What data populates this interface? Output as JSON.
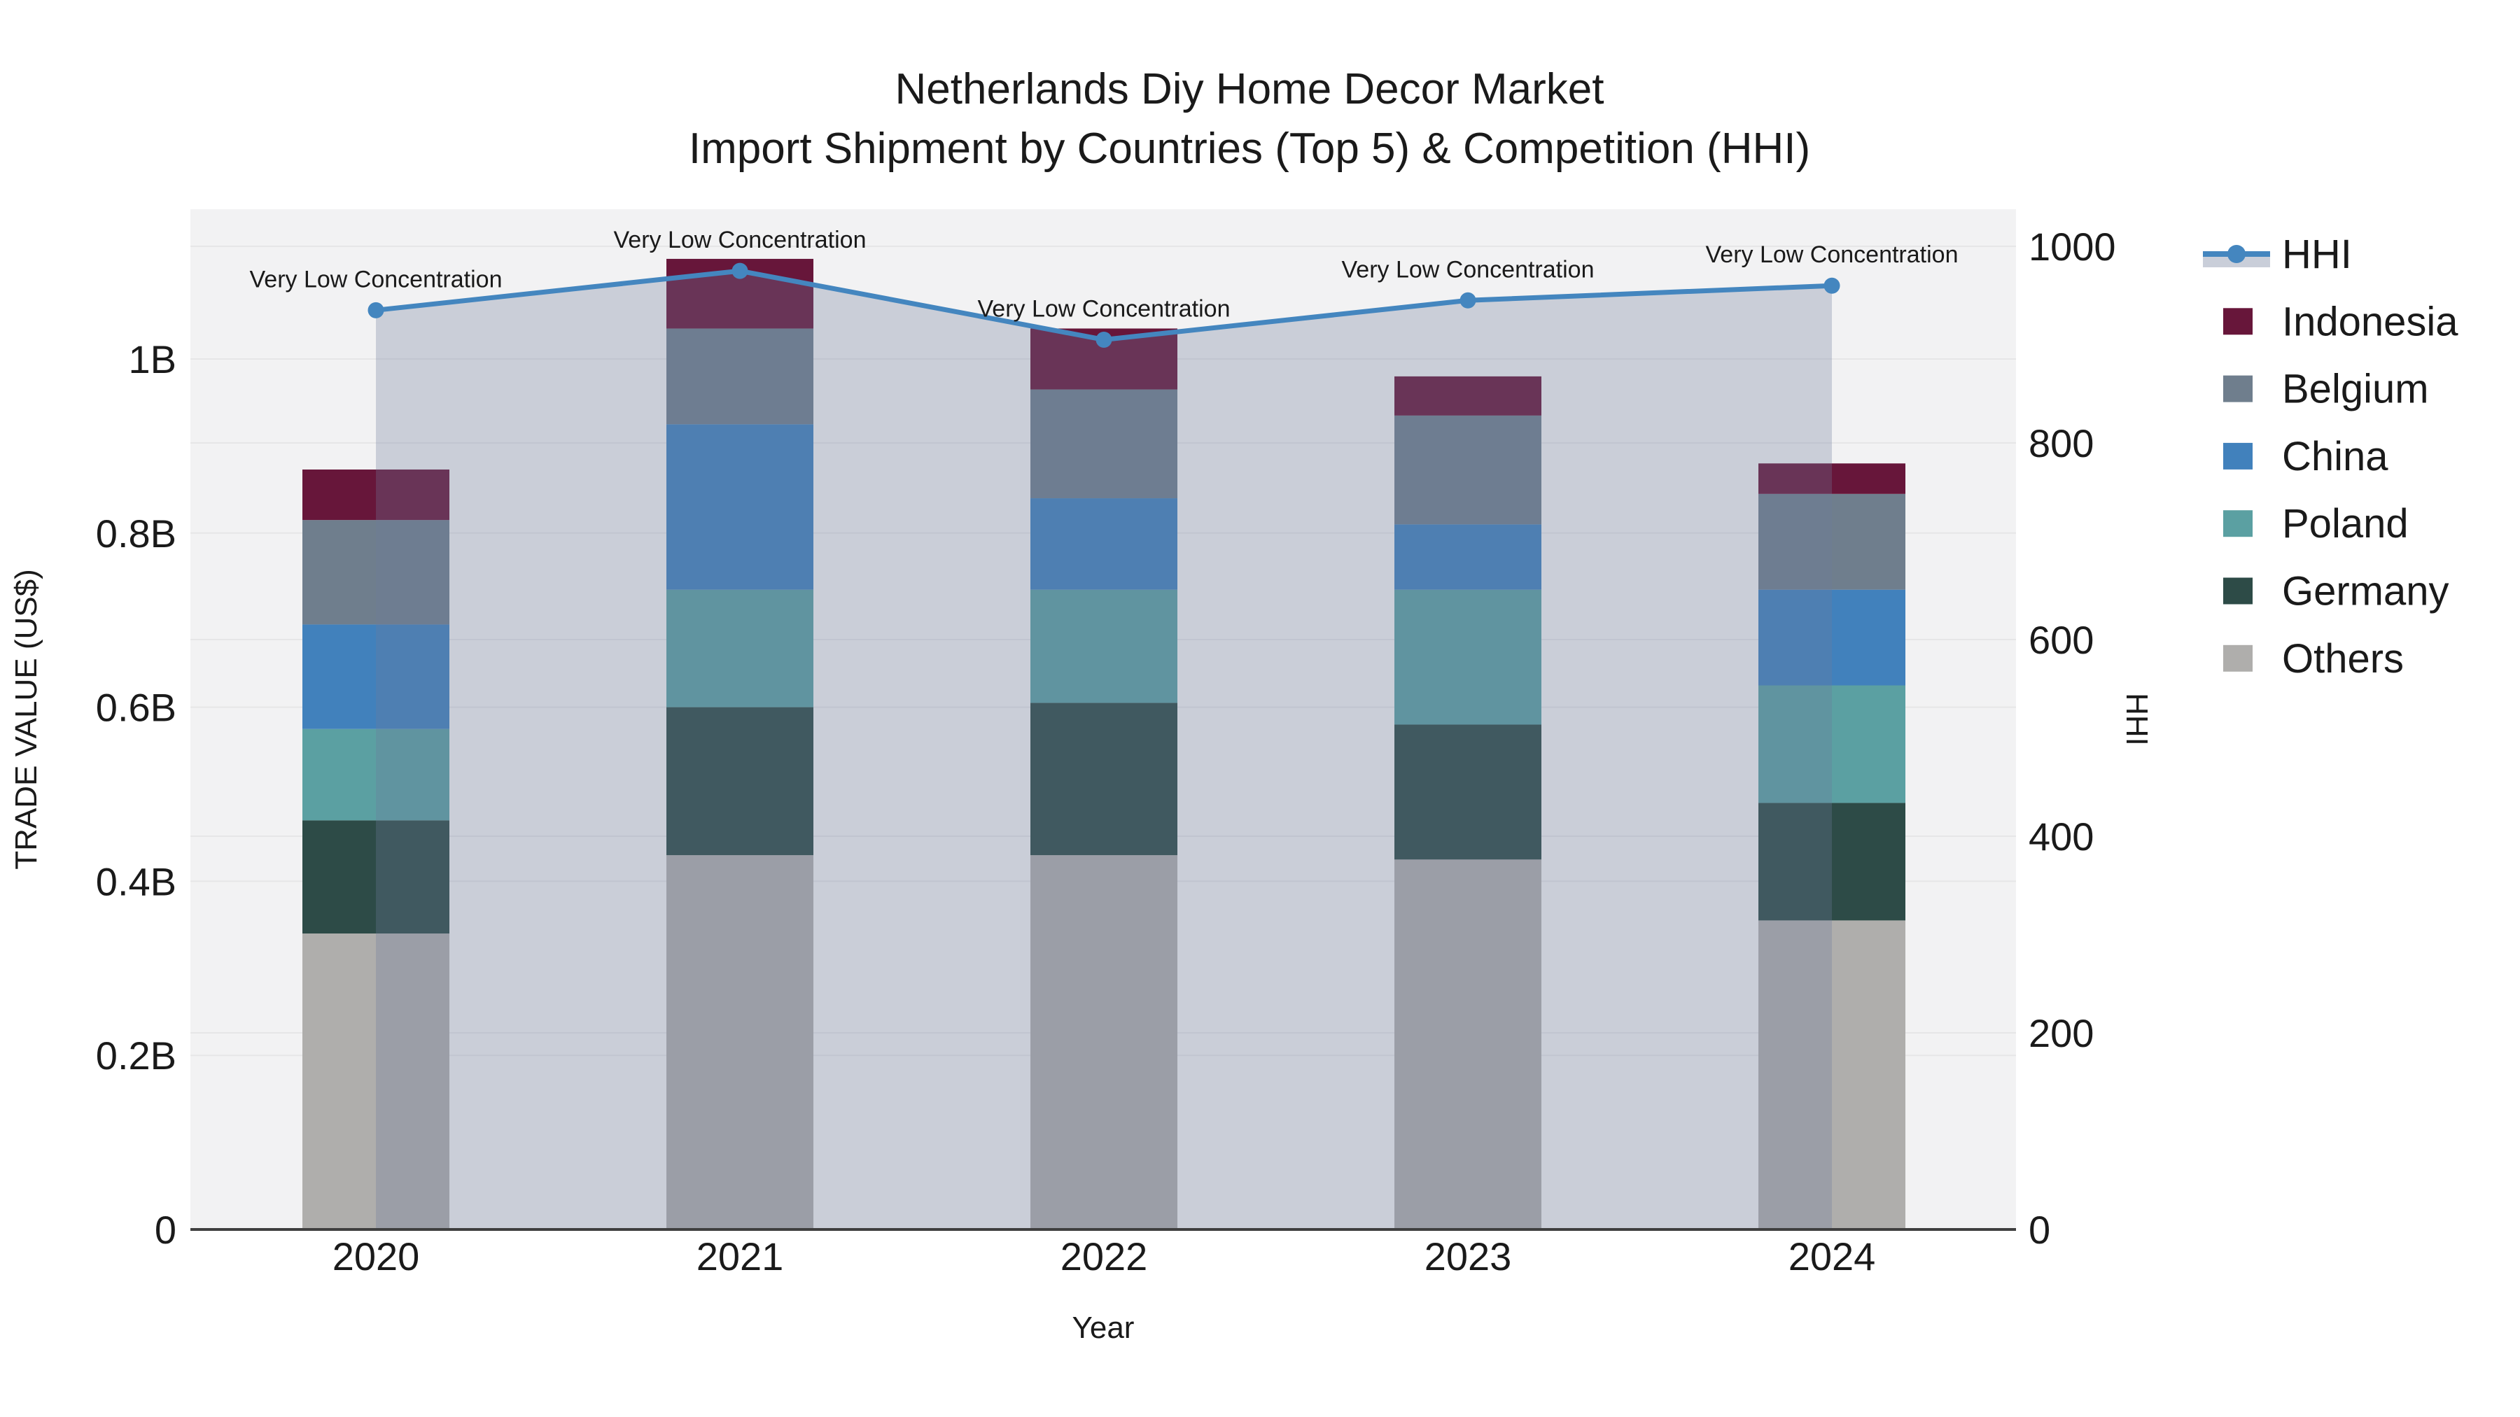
{
  "title": {
    "line1": "Netherlands Diy Home Decor Market",
    "line2": "Import Shipment by Countries (Top 5) & Competition (HHI)"
  },
  "axes": {
    "left_title": "TRADE VALUE (US$)",
    "right_title": "HHI",
    "x_title": "Year"
  },
  "chart_data": {
    "type": "combo",
    "subtype": "stacked-bar + line (dual axis) with area fill under line",
    "title": "Netherlands Diy Home Decor Market",
    "subtitle": "Import Shipment by Countries (Top 5) & Competition (HHI)",
    "xlabel": "Year",
    "ylabel_left": "TRADE VALUE (US$)",
    "ylabel_right": "HHI",
    "categories": [
      "2020",
      "2021",
      "2022",
      "2023",
      "2024"
    ],
    "bar_value_unit": "billions of US$",
    "series": [
      {
        "name": "Others",
        "color": "#afaeac",
        "values": [
          0.34,
          0.43,
          0.43,
          0.425,
          0.355
        ]
      },
      {
        "name": "Germany",
        "color": "#2d4b47",
        "values": [
          0.13,
          0.17,
          0.175,
          0.155,
          0.135
        ]
      },
      {
        "name": "Poland",
        "color": "#5ba0a2",
        "values": [
          0.105,
          0.135,
          0.13,
          0.155,
          0.135
        ]
      },
      {
        "name": "China",
        "color": "#4181bc",
        "values": [
          0.12,
          0.19,
          0.105,
          0.075,
          0.11
        ]
      },
      {
        "name": "Belgium",
        "color": "#6f7e8d",
        "values": [
          0.12,
          0.11,
          0.125,
          0.125,
          0.11
        ]
      },
      {
        "name": "Indonesia",
        "color": "#67163a",
        "values": [
          0.058,
          0.08,
          0.07,
          0.045,
          0.035
        ]
      }
    ],
    "bar_totals": [
      0.873,
      1.115,
      1.035,
      0.98,
      0.88
    ],
    "line_series": {
      "name": "HHI",
      "axis": "right",
      "color": "#4486bf",
      "area_fill": "rgba(109,124,155,0.30)",
      "values": [
        935,
        975,
        905,
        945,
        960
      ]
    },
    "annotations": [
      {
        "x": "2020",
        "text": "Very Low Concentration"
      },
      {
        "x": "2021",
        "text": "Very Low Concentration"
      },
      {
        "x": "2022",
        "text": "Very Low Concentration"
      },
      {
        "x": "2023",
        "text": "Very Low Concentration"
      },
      {
        "x": "2024",
        "text": "Very Low Concentration"
      }
    ],
    "axis_left": {
      "tick_labels": [
        "0",
        "0.2B",
        "0.4B",
        "0.6B",
        "0.8B",
        "1B"
      ],
      "tick_values": [
        0,
        0.2,
        0.4,
        0.6,
        0.8,
        1.0
      ],
      "range": [
        0,
        1.172
      ]
    },
    "axis_right": {
      "tick_labels": [
        "0",
        "200",
        "400",
        "600",
        "800",
        "1000"
      ],
      "tick_values": [
        0,
        200,
        400,
        600,
        800,
        1000
      ],
      "range": [
        0,
        1038
      ]
    },
    "legend": {
      "position": "right",
      "items": [
        "HHI",
        "Indonesia",
        "Belgium",
        "China",
        "Poland",
        "Germany",
        "Others"
      ]
    },
    "grid": true,
    "plot_background": "#f2f2f3",
    "gridline_color": "#e6e6e7",
    "axis_line_color": "#3f3f3f"
  }
}
